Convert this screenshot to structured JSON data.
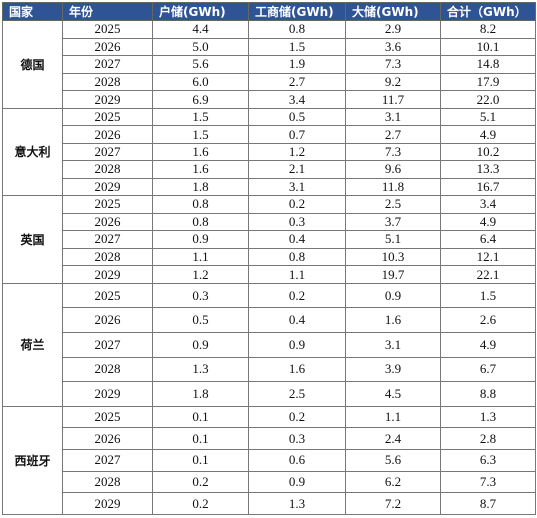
{
  "table": {
    "header": [
      "国家",
      "年份",
      "户储(GWh)",
      "工商储(GWh)",
      "大储(GWh)",
      "合计（GWh）"
    ],
    "groups": [
      {
        "country": "德国",
        "rows": [
          [
            "2025",
            "4.4",
            "0.8",
            "2.9",
            "8.2"
          ],
          [
            "2026",
            "5.0",
            "1.5",
            "3.6",
            "10.1"
          ],
          [
            "2027",
            "5.6",
            "1.9",
            "7.3",
            "14.8"
          ],
          [
            "2028",
            "6.0",
            "2.7",
            "9.2",
            "17.9"
          ],
          [
            "2029",
            "6.9",
            "3.4",
            "11.7",
            "22.0"
          ]
        ]
      },
      {
        "country": "意大利",
        "rows": [
          [
            "2025",
            "1.5",
            "0.5",
            "3.1",
            "5.1"
          ],
          [
            "2026",
            "1.5",
            "0.7",
            "2.7",
            "4.9"
          ],
          [
            "2027",
            "1.6",
            "1.2",
            "7.3",
            "10.2"
          ],
          [
            "2028",
            "1.6",
            "2.1",
            "9.6",
            "13.3"
          ],
          [
            "2029",
            "1.8",
            "3.1",
            "11.8",
            "16.7"
          ]
        ]
      },
      {
        "country": "英国",
        "rows": [
          [
            "2025",
            "0.8",
            "0.2",
            "2.5",
            "3.4"
          ],
          [
            "2026",
            "0.8",
            "0.3",
            "3.7",
            "4.9"
          ],
          [
            "2027",
            "0.9",
            "0.4",
            "5.1",
            "6.4"
          ],
          [
            "2028",
            "1.1",
            "0.8",
            "10.3",
            "12.1"
          ],
          [
            "2029",
            "1.2",
            "1.1",
            "19.7",
            "22.1"
          ]
        ]
      },
      {
        "country": "荷兰",
        "rows": [
          [
            "2025",
            "0.3",
            "0.2",
            "0.9",
            "1.5"
          ],
          [
            "2026",
            "0.5",
            "0.4",
            "1.6",
            "2.6"
          ],
          [
            "2027",
            "0.9",
            "0.9",
            "3.1",
            "4.9"
          ],
          [
            "2028",
            "1.3",
            "1.6",
            "3.9",
            "6.7"
          ],
          [
            "2029",
            "1.8",
            "2.5",
            "4.5",
            "8.8"
          ]
        ]
      },
      {
        "country": "西班牙",
        "rows": [
          [
            "2025",
            "0.1",
            "0.2",
            "1.1",
            "1.3"
          ],
          [
            "2026",
            "0.1",
            "0.3",
            "2.4",
            "2.8"
          ],
          [
            "2027",
            "0.1",
            "0.6",
            "5.6",
            "6.3"
          ],
          [
            "2028",
            "0.2",
            "0.9",
            "6.2",
            "7.3"
          ],
          [
            "2029",
            "0.2",
            "1.3",
            "7.2",
            "8.7"
          ]
        ]
      }
    ]
  }
}
